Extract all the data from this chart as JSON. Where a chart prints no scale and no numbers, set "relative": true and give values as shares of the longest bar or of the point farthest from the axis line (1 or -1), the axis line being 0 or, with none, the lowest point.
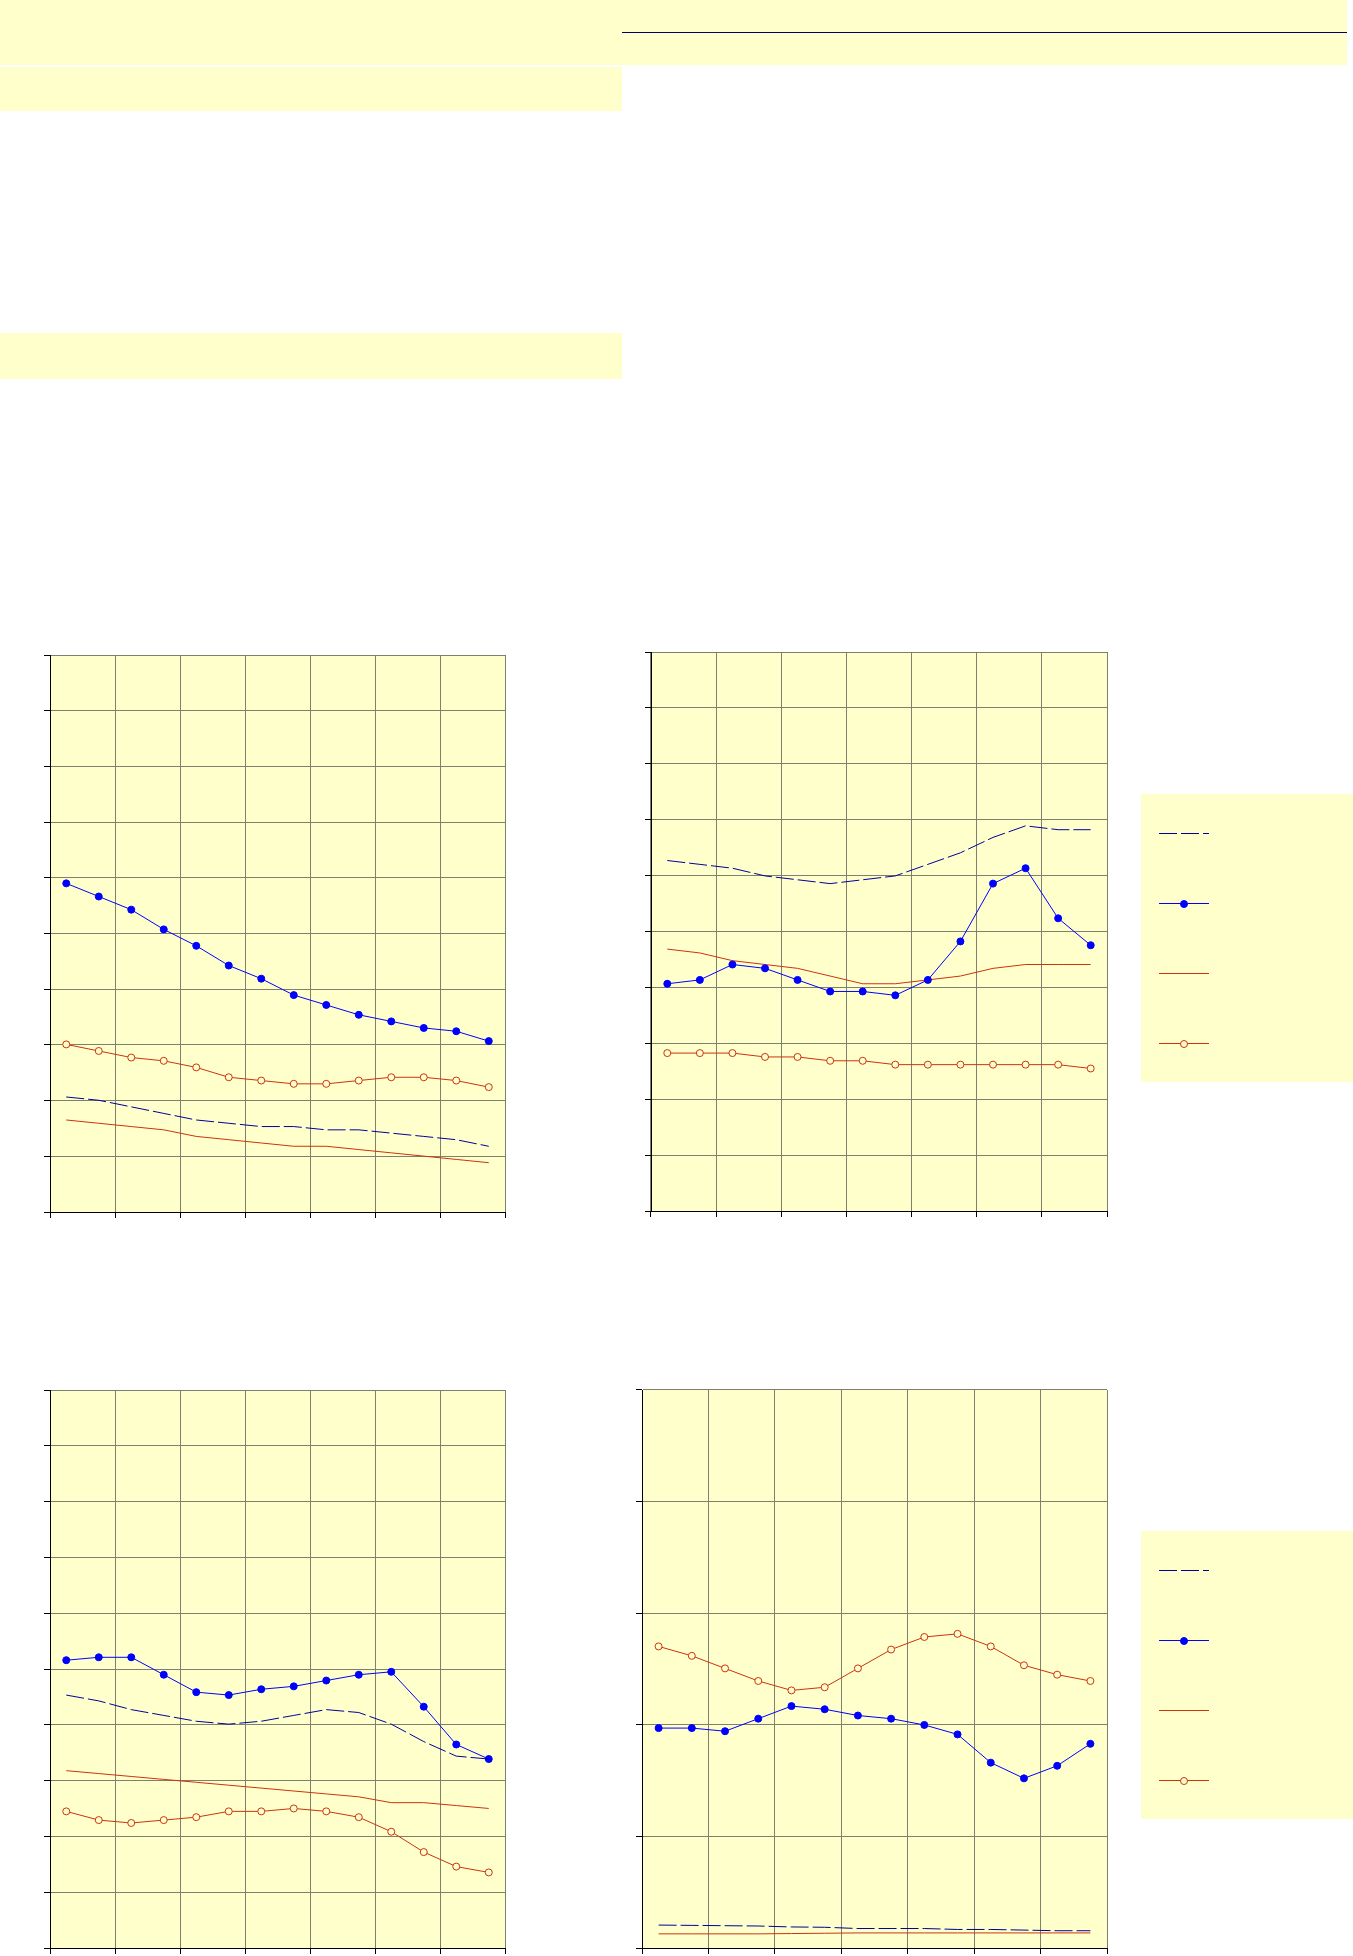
{
  "chart_data": [
    {
      "type": "line",
      "relative": true,
      "tick_labels": false,
      "grid": true,
      "categories": [
        null,
        null,
        null,
        null,
        null,
        null,
        null,
        null,
        null,
        null,
        null,
        null,
        null,
        null
      ],
      "series": [
        {
          "color": "#000099",
          "line_style": "dashed",
          "values": [
            0.35,
            0.34,
            0.32,
            0.3,
            0.28,
            0.27,
            0.26,
            0.26,
            0.25,
            0.25,
            0.24,
            0.23,
            0.22,
            0.2
          ]
        },
        {
          "color": "#0000ff",
          "marker": "circle",
          "values": [
            1,
            0.96,
            0.92,
            0.86,
            0.81,
            0.75,
            0.71,
            0.66,
            0.63,
            0.6,
            0.58,
            0.56,
            0.55,
            0.52
          ]
        },
        {
          "color": "#cc3311",
          "values": [
            0.28,
            0.27,
            0.26,
            0.25,
            0.23,
            0.22,
            0.21,
            0.2,
            0.2,
            0.19,
            0.18,
            0.17,
            0.16,
            0.15
          ]
        },
        {
          "color": "#cc3311",
          "marker": "circle",
          "values": [
            0.51,
            0.49,
            0.47,
            0.46,
            0.44,
            0.41,
            0.4,
            0.39,
            0.39,
            0.4,
            0.41,
            0.41,
            0.4,
            0.38
          ]
        }
      ]
    },
    {
      "type": "line",
      "relative": true,
      "tick_labels": false,
      "grid": true,
      "categories": [
        null,
        null,
        null,
        null,
        null,
        null,
        null,
        null,
        null,
        null,
        null,
        null,
        null,
        null
      ],
      "series": [
        {
          "color": "#000099",
          "line_style": "dashed",
          "values": [
            0.91,
            0.9,
            0.89,
            0.87,
            0.86,
            0.85,
            0.86,
            0.87,
            0.9,
            0.93,
            0.97,
            1,
            0.99,
            0.99
          ]
        },
        {
          "color": "#0000ff",
          "marker": "circle",
          "values": [
            0.59,
            0.6,
            0.64,
            0.63,
            0.6,
            0.57,
            0.57,
            0.56,
            0.6,
            0.7,
            0.85,
            0.89,
            0.76,
            0.69
          ]
        },
        {
          "color": "#cc3311",
          "values": [
            0.68,
            0.67,
            0.65,
            0.64,
            0.63,
            0.61,
            0.59,
            0.59,
            0.6,
            0.61,
            0.63,
            0.64,
            0.64,
            0.64
          ]
        },
        {
          "color": "#cc3311",
          "marker": "circle",
          "values": [
            0.41,
            0.41,
            0.41,
            0.4,
            0.4,
            0.39,
            0.39,
            0.38,
            0.38,
            0.38,
            0.38,
            0.38,
            0.38,
            0.37
          ]
        }
      ]
    },
    {
      "type": "line",
      "relative": true,
      "tick_labels": false,
      "grid": true,
      "categories": [
        null,
        null,
        null,
        null,
        null,
        null,
        null,
        null,
        null,
        null,
        null,
        null,
        null,
        null
      ],
      "series": [
        {
          "color": "#000099",
          "line_style": "dashed",
          "values": [
            0.87,
            0.85,
            0.82,
            0.8,
            0.78,
            0.77,
            0.78,
            0.8,
            0.82,
            0.81,
            0.77,
            0.71,
            0.66,
            0.65
          ]
        },
        {
          "color": "#0000ff",
          "marker": "circle",
          "values": [
            0.99,
            1,
            1,
            0.94,
            0.88,
            0.87,
            0.89,
            0.9,
            0.92,
            0.94,
            0.95,
            0.83,
            0.7,
            0.65
          ]
        },
        {
          "color": "#cc3311",
          "values": [
            0.61,
            0.6,
            0.59,
            0.58,
            0.57,
            0.56,
            0.55,
            0.54,
            0.53,
            0.52,
            0.5,
            0.5,
            0.49,
            0.48
          ]
        },
        {
          "color": "#cc3311",
          "marker": "circle",
          "values": [
            0.47,
            0.44,
            0.43,
            0.44,
            0.45,
            0.47,
            0.47,
            0.48,
            0.47,
            0.45,
            0.4,
            0.33,
            0.28,
            0.26
          ]
        }
      ]
    },
    {
      "type": "line",
      "relative": true,
      "tick_labels": false,
      "grid": true,
      "categories": [
        null,
        null,
        null,
        null,
        null,
        null,
        null,
        null,
        null,
        null,
        null,
        null,
        null,
        null
      ],
      "series": [
        {
          "color": "#000099",
          "line_style": "dashed",
          "values": [
            0.073,
            0.072,
            0.071,
            0.07,
            0.067,
            0.066,
            0.062,
            0.062,
            0.062,
            0.059,
            0.059,
            0.057,
            0.055,
            0.055
          ]
        },
        {
          "color": "#0000ff",
          "marker": "circle",
          "values": [
            0.7,
            0.7,
            0.69,
            0.73,
            0.77,
            0.76,
            0.74,
            0.73,
            0.71,
            0.68,
            0.59,
            0.54,
            0.58,
            0.65
          ]
        },
        {
          "color": "#cc3311",
          "values": [
            0.045,
            0.045,
            0.045,
            0.045,
            0.046,
            0.047,
            0.048,
            0.048,
            0.048,
            0.048,
            0.048,
            0.048,
            0.048,
            0.048
          ]
        },
        {
          "color": "#cc3311",
          "marker": "circle",
          "values": [
            0.96,
            0.93,
            0.89,
            0.85,
            0.82,
            0.83,
            0.89,
            0.95,
            0.99,
            1,
            0.96,
            0.9,
            0.87,
            0.85
          ]
        }
      ]
    }
  ]
}
